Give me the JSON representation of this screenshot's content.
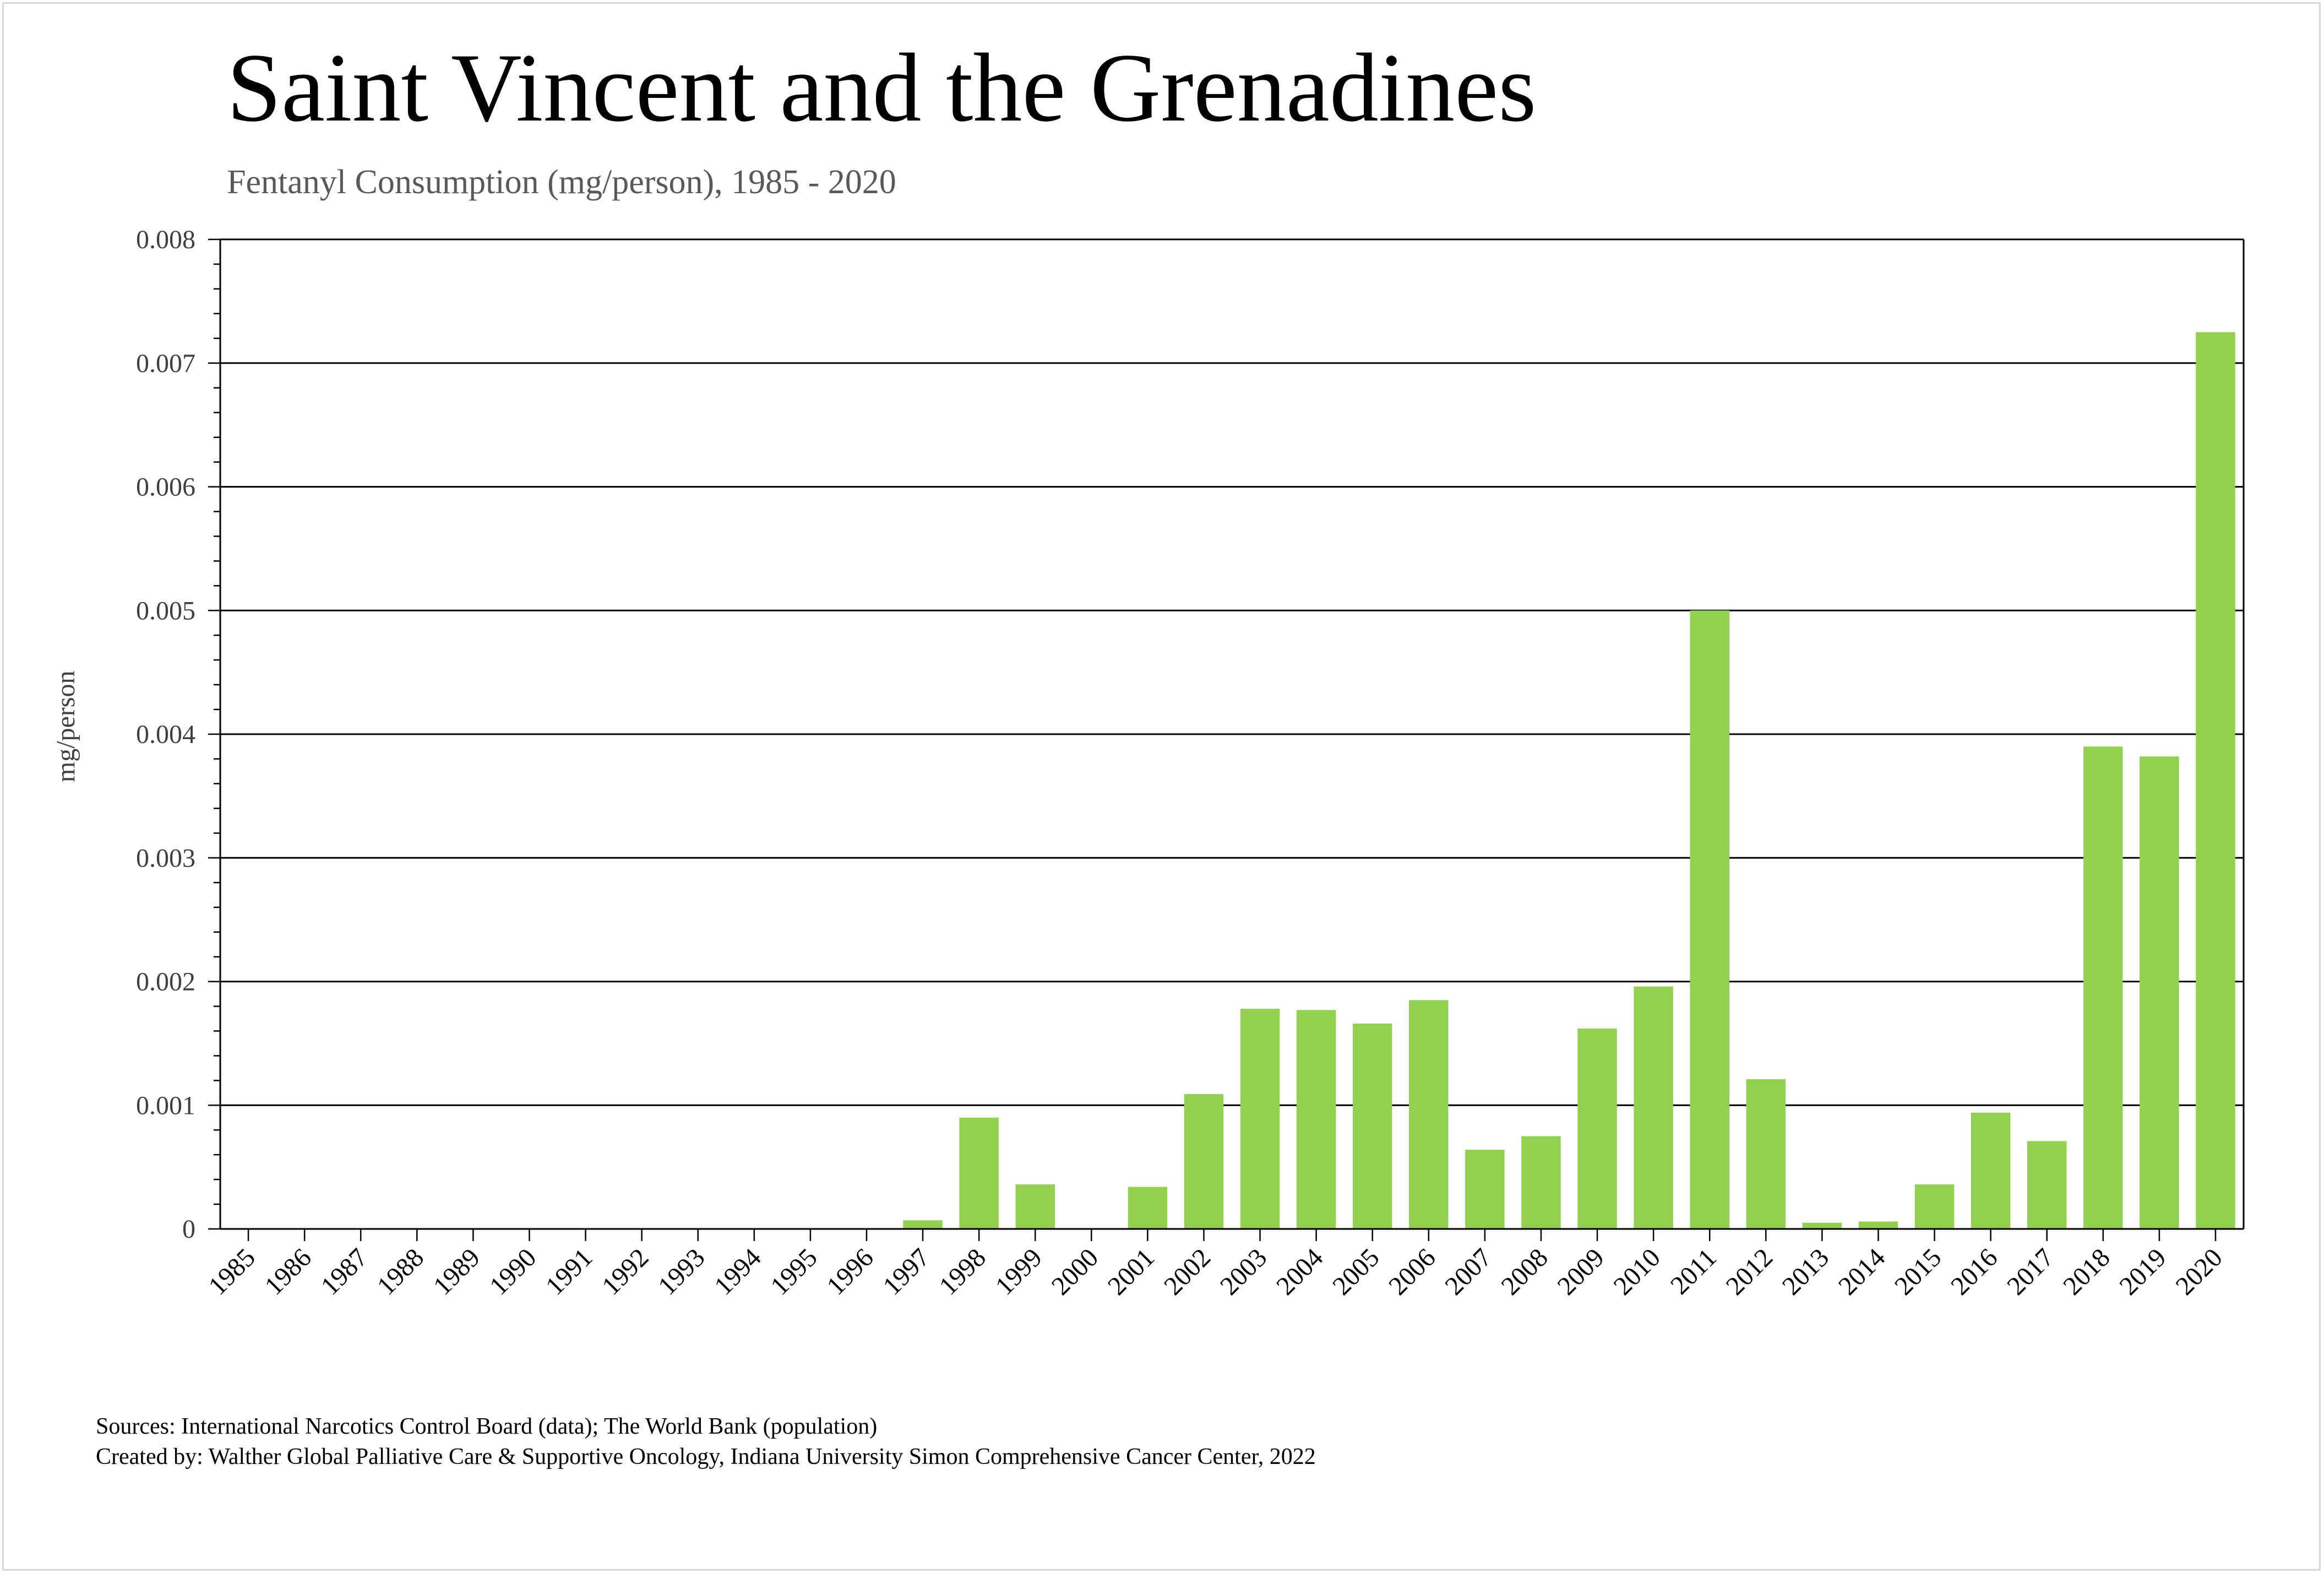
{
  "title": "Saint Vincent and the Grenadines",
  "subtitle": "Fentanyl Consumption (mg/person), 1985 - 2020",
  "sources": "Sources: International Narcotics Control Board (data); The World Bank (population)",
  "created_by": "Created by: Walther Global Palliative Care & Supportive Oncology, Indiana University Simon Comprehensive Cancer Center, 2022",
  "colors": {
    "bar": "#92d050",
    "grid": "#000000",
    "text": "#595959"
  },
  "chart_data": {
    "type": "bar",
    "title": "Saint Vincent and the Grenadines",
    "subtitle": "Fentanyl Consumption (mg/person), 1985 - 2020",
    "xlabel": "",
    "ylabel": "mg/person",
    "ylim": [
      0,
      0.008
    ],
    "yticks": [
      0,
      0.001,
      0.002,
      0.003,
      0.004,
      0.005,
      0.006,
      0.007,
      0.008
    ],
    "ytick_labels": [
      "0",
      "0.001",
      "0.002",
      "0.003",
      "0.004",
      "0.005",
      "0.006",
      "0.007",
      "0.008"
    ],
    "grid": true,
    "categories": [
      "1985",
      "1986",
      "1987",
      "1988",
      "1989",
      "1990",
      "1991",
      "1992",
      "1993",
      "1994",
      "1995",
      "1996",
      "1997",
      "1998",
      "1999",
      "2000",
      "2001",
      "2002",
      "2003",
      "2004",
      "2005",
      "2006",
      "2007",
      "2008",
      "2009",
      "2010",
      "2011",
      "2012",
      "2013",
      "2014",
      "2015",
      "2016",
      "2017",
      "2018",
      "2019",
      "2020"
    ],
    "values": [
      0,
      0,
      0,
      0,
      0,
      0,
      0,
      0,
      0,
      0,
      0,
      0,
      7e-05,
      0.0009,
      0.00036,
      0,
      0.00034,
      0.00109,
      0.00178,
      0.00177,
      0.00166,
      0.00185,
      0.00064,
      0.00075,
      0.00162,
      0.00196,
      0.005,
      0.00121,
      5e-05,
      6e-05,
      0.00036,
      0.00094,
      0.00071,
      0.0039,
      0.00382,
      0.00725
    ]
  }
}
